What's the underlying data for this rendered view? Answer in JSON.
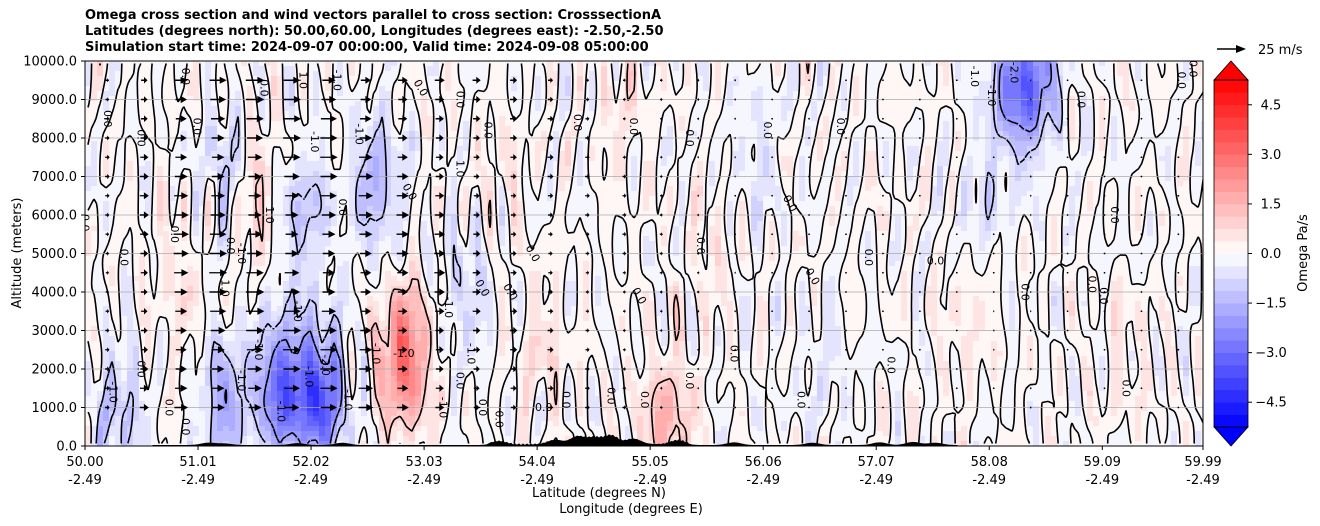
{
  "chart_data": {
    "type": "heatmap",
    "title_lines": [
      "Omega cross section and wind vectors parallel to cross section: CrosssectionA",
      "Latitudes (degrees north): 50.00,60.00, Longitudes (degrees east): -2.50,-2.50",
      "Simulation start time: 2024-09-07 00:00:00, Valid time: 2024-09-08 05:00:00"
    ],
    "xlabel_lat": "Latitude (degrees N)",
    "xlabel_lon": "Longitude (degrees E)",
    "ylabel": "Altitude (meters)",
    "xlim": [
      50.0,
      59.99
    ],
    "ylim": [
      0,
      10000
    ],
    "x_ticks": [
      {
        "value": 50.0,
        "lat": "50.00",
        "lon": "-2.49"
      },
      {
        "value": 51.01,
        "lat": "51.01",
        "lon": "-2.49"
      },
      {
        "value": 52.02,
        "lat": "52.02",
        "lon": "-2.49"
      },
      {
        "value": 53.03,
        "lat": "53.03",
        "lon": "-2.49"
      },
      {
        "value": 54.04,
        "lat": "54.04",
        "lon": "-2.49"
      },
      {
        "value": 55.05,
        "lat": "55.05",
        "lon": "-2.49"
      },
      {
        "value": 56.06,
        "lat": "56.06",
        "lon": "-2.49"
      },
      {
        "value": 57.07,
        "lat": "57.07",
        "lon": "-2.49"
      },
      {
        "value": 58.08,
        "lat": "58.08",
        "lon": "-2.49"
      },
      {
        "value": 59.09,
        "lat": "59.09",
        "lon": "-2.49"
      },
      {
        "value": 59.99,
        "lat": "59.99",
        "lon": "-2.49"
      }
    ],
    "y_ticks": [
      {
        "value": 0,
        "label": "0.0"
      },
      {
        "value": 1000,
        "label": "1000.0"
      },
      {
        "value": 2000,
        "label": "2000.0"
      },
      {
        "value": 3000,
        "label": "3000.0"
      },
      {
        "value": 4000,
        "label": "4000.0"
      },
      {
        "value": 5000,
        "label": "5000.0"
      },
      {
        "value": 6000,
        "label": "6000.0"
      },
      {
        "value": 7000,
        "label": "7000.0"
      },
      {
        "value": 8000,
        "label": "8000.0"
      },
      {
        "value": 9000,
        "label": "9000.0"
      },
      {
        "value": 10000,
        "label": "10000.0"
      }
    ],
    "grid": true,
    "colorbar": {
      "label": "Omega Pa/s",
      "range": [
        -5.25,
        5.25
      ],
      "levels_step": 0.375,
      "extend": "both",
      "colormap": "bwr",
      "ticks": [
        {
          "value": 4.5,
          "label": "4.5"
        },
        {
          "value": 3.0,
          "label": "3.0"
        },
        {
          "value": 1.5,
          "label": "1.5"
        },
        {
          "value": 0.0,
          "label": "0.0"
        },
        {
          "value": -1.5,
          "label": "−1.5"
        },
        {
          "value": -3.0,
          "label": "−3.0"
        },
        {
          "value": -4.5,
          "label": "−4.5"
        }
      ]
    },
    "quiver_key": {
      "value": 25,
      "label": "25 m/s"
    },
    "contour_level_labels": [
      "0.0",
      "-1.0",
      "1.0",
      "-2.0"
    ],
    "omega_features": [
      {
        "lat": 51.75,
        "alt": 1500,
        "omega": -3.0
      },
      {
        "lat": 52.1,
        "alt": 1300,
        "omega": -3.5
      },
      {
        "lat": 51.95,
        "alt": 6000,
        "omega": -1.2
      },
      {
        "lat": 52.6,
        "alt": 6800,
        "omega": -1.5
      },
      {
        "lat": 51.3,
        "alt": 7000,
        "omega": -1.2
      },
      {
        "lat": 58.3,
        "alt": 9200,
        "omega": -2.0
      },
      {
        "lat": 58.5,
        "alt": 9600,
        "omega": -2.0
      },
      {
        "lat": 51.2,
        "alt": 1200,
        "omega": -2.5
      },
      {
        "lat": 50.3,
        "alt": 800,
        "omega": -1.2
      },
      {
        "lat": 52.85,
        "alt": 2300,
        "omega": 3.0
      },
      {
        "lat": 51.5,
        "alt": 6500,
        "omega": 1.2
      },
      {
        "lat": 51.1,
        "alt": 1500,
        "omega": 1.0
      },
      {
        "lat": 55.2,
        "alt": 600,
        "omega": 1.5
      },
      {
        "lat": 54.1,
        "alt": 2500,
        "omega": 0.6
      },
      {
        "lat": 54.8,
        "alt": 9000,
        "omega": 0.5
      },
      {
        "lat": 55.6,
        "alt": 5000,
        "omega": 0.4
      },
      {
        "lat": 57.9,
        "alt": 3500,
        "omega": 0.5
      },
      {
        "lat": 53.4,
        "alt": 4000,
        "omega": -0.8
      },
      {
        "lat": 56.0,
        "alt": 7500,
        "omega": -0.5
      },
      {
        "lat": 58.0,
        "alt": 6000,
        "omega": -0.6
      },
      {
        "lat": 59.3,
        "alt": 2500,
        "omega": 0.4
      },
      {
        "lat": 56.6,
        "alt": 2000,
        "omega": -0.4
      },
      {
        "lat": 50.8,
        "alt": 4500,
        "omega": 0.5
      },
      {
        "lat": 53.7,
        "alt": 7000,
        "omega": 0.4
      }
    ],
    "wind_profile": {
      "lats": [
        50.3,
        50.9,
        51.3,
        51.75,
        52.2,
        52.6,
        53.1,
        53.5,
        54.0,
        54.5,
        55.0,
        55.5,
        56.0,
        56.5,
        57.0,
        57.5,
        58.0,
        58.5,
        59.0,
        59.5
      ],
      "speed_ms": [
        4,
        14,
        16,
        16,
        15,
        12,
        10,
        7,
        6,
        4,
        3,
        2,
        1,
        1,
        0.5,
        0.5,
        -1,
        -1.5,
        -0.5,
        0.3
      ]
    }
  }
}
